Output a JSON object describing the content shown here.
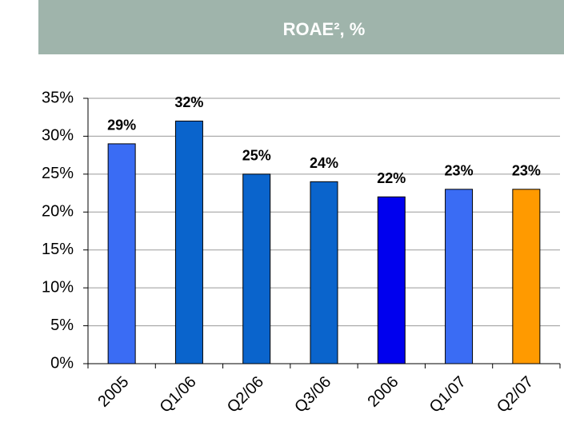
{
  "chart_data": {
    "type": "bar",
    "title": "ROAE², %",
    "categories": [
      "2005",
      "Q1/06",
      "Q2/06",
      "Q3/06",
      "2006",
      "Q1/07",
      "Q2/07"
    ],
    "values": [
      29,
      32,
      25,
      24,
      22,
      23,
      23
    ],
    "value_labels": [
      "29%",
      "32%",
      "25%",
      "24%",
      "22%",
      "23%",
      "23%"
    ],
    "colors": [
      "#3a6cf4",
      "#0a64cc",
      "#0a64cc",
      "#0a64cc",
      "#0000ee",
      "#3a6cf4",
      "#ff9a00"
    ],
    "ylim": [
      0,
      35
    ],
    "yticks": [
      {
        "value": 0,
        "label": "0%"
      },
      {
        "value": 5,
        "label": "5%"
      },
      {
        "value": 10,
        "label": "10%"
      },
      {
        "value": 15,
        "label": "15%"
      },
      {
        "value": 20,
        "label": "20%"
      },
      {
        "value": 25,
        "label": "25%"
      },
      {
        "value": 30,
        "label": "30%"
      },
      {
        "value": 35,
        "label": "35%"
      }
    ],
    "grid": true
  }
}
